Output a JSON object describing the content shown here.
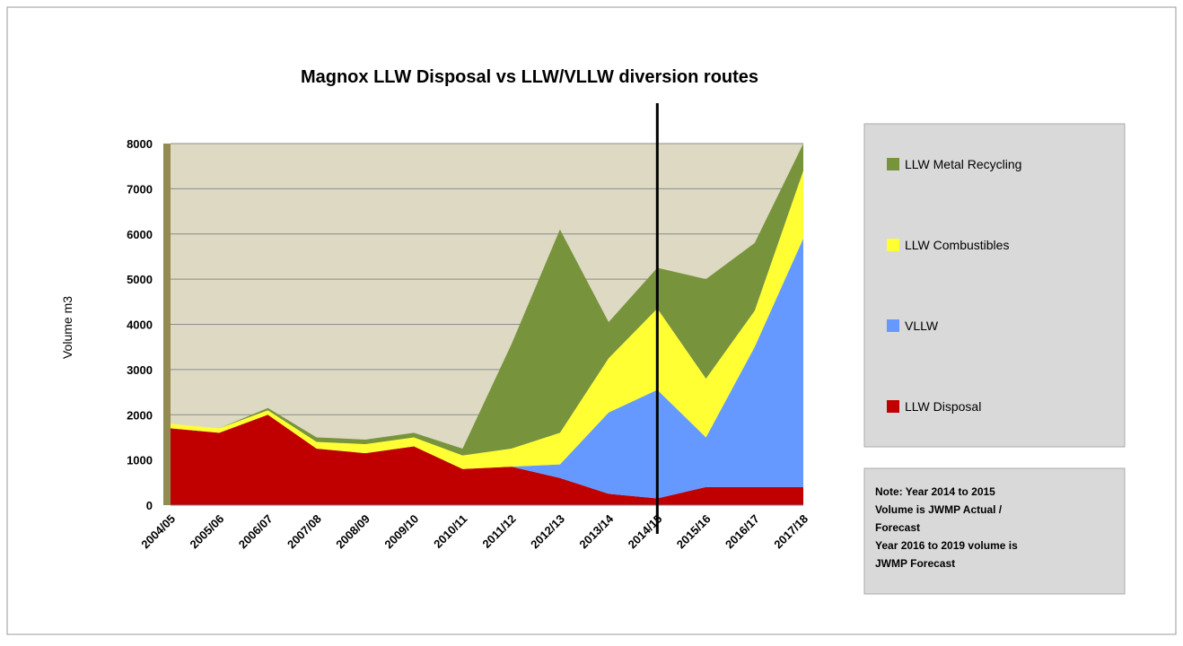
{
  "chart_data": {
    "type": "stacked_area",
    "title": "Magnox LLW Disposal vs  LLW/VLLW diversion  routes",
    "ylabel": "Volume  m3",
    "categories": [
      "2004/05",
      "2005/06",
      "2006/07",
      "2007/08",
      "2008/09",
      "2009/10",
      "2010/11",
      "2011/12",
      "2012/13",
      "2013/14",
      "2014/15",
      "2015/16",
      "2016/17",
      "2017/18"
    ],
    "series": [
      {
        "name": "LLW Disposal",
        "color": "#c00000",
        "values": [
          1700,
          1600,
          2000,
          1250,
          1150,
          1300,
          800,
          850,
          600,
          250,
          150,
          400,
          400,
          400
        ]
      },
      {
        "name": "VLLW",
        "color": "#6699ff",
        "values": [
          0,
          0,
          0,
          0,
          0,
          0,
          0,
          0,
          300,
          1800,
          2400,
          1100,
          3100,
          5500
        ]
      },
      {
        "name": "LLW Combustibles",
        "color": "#ffff33",
        "values": [
          100,
          100,
          100,
          150,
          200,
          200,
          300,
          400,
          700,
          1200,
          1800,
          1300,
          800,
          1500
        ]
      },
      {
        "name": "LLW Metal Recycling",
        "color": "#77933c",
        "values": [
          0,
          0,
          50,
          100,
          100,
          100,
          150,
          2300,
          4500,
          800,
          900,
          2200,
          1500,
          600
        ]
      }
    ],
    "ylim": [
      0,
      8000
    ],
    "yticks": [
      0,
      1000,
      2000,
      3000,
      4000,
      5000,
      6000,
      7000,
      8000
    ],
    "grid": true,
    "legend": "right",
    "vertical_line": "2014/15",
    "note": [
      "Note: Year 2014 to 2015",
      "Volume is JWMP Actual /",
      "Forecast",
      "Year 2016 to 2019 volume is",
      "JWMP Forecast"
    ]
  }
}
